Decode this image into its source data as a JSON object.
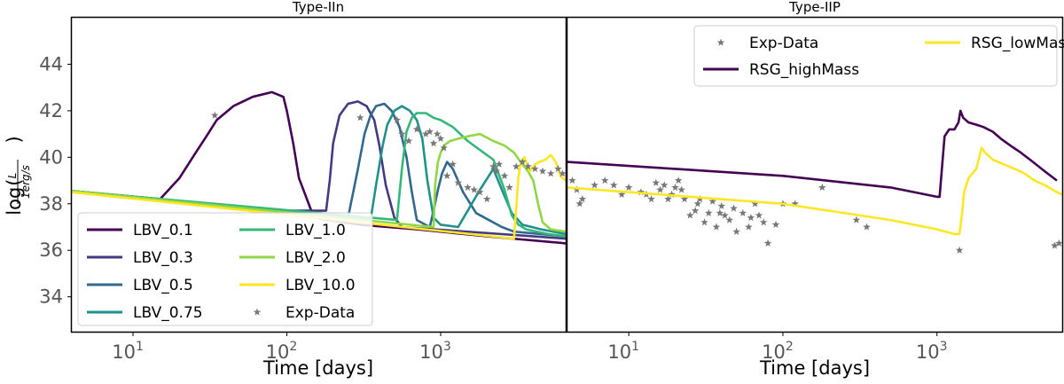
{
  "chart_data": [
    {
      "type": "line",
      "title": "Type-IIn",
      "xlabel": "Time [days]",
      "ylabel": "log(L / 1 erg/s)",
      "xscale": "log",
      "xlim": [
        4,
        6500
      ],
      "ylim": [
        32.5,
        46
      ],
      "xticks": [
        {
          "base": "10",
          "exp": "1"
        },
        {
          "base": "10",
          "exp": "2"
        },
        {
          "base": "10",
          "exp": "3"
        }
      ],
      "yticks": [
        "34",
        "36",
        "38",
        "40",
        "42",
        "44"
      ],
      "legend_position": "lower-left",
      "series": [
        {
          "name": "LBV_0.1",
          "color": "#440154",
          "x": [
            4,
            15,
            20,
            25,
            30,
            35,
            45,
            60,
            80,
            95,
            100,
            110,
            120,
            150,
            300,
            700,
            2000,
            6500
          ],
          "y": [
            38.55,
            38.2,
            39.1,
            40.1,
            40.9,
            41.6,
            42.2,
            42.6,
            42.8,
            42.6,
            42.0,
            40.6,
            39.1,
            37.4,
            37.1,
            36.9,
            36.6,
            36.3
          ]
        },
        {
          "name": "LBV_0.3",
          "color": "#443a83",
          "x": [
            4,
            100,
            180,
            190,
            200,
            220,
            250,
            290,
            330,
            370,
            400,
            440,
            500,
            560,
            6500
          ],
          "y": [
            38.55,
            37.7,
            37.7,
            39.0,
            40.6,
            41.8,
            42.3,
            42.4,
            42.2,
            41.6,
            40.5,
            38.8,
            37.4,
            37.0,
            36.5
          ]
        },
        {
          "name": "LBV_0.5",
          "color": "#31688e",
          "x": [
            4,
            250,
            290,
            320,
            350,
            380,
            430,
            480,
            540,
            600,
            650,
            700,
            850,
            900,
            960,
            1020,
            1100,
            1200,
            1400,
            1700,
            2500,
            3000,
            6500
          ],
          "y": [
            38.55,
            37.4,
            39.5,
            41.0,
            41.8,
            42.2,
            42.3,
            42.0,
            41.3,
            40.0,
            38.5,
            37.3,
            37.0,
            37.7,
            38.6,
            39.3,
            39.8,
            39.5,
            38.5,
            37.6,
            37.0,
            36.8,
            36.6
          ]
        },
        {
          "name": "LBV_0.75",
          "color": "#21918c",
          "x": [
            4,
            350,
            380,
            420,
            450,
            500,
            560,
            630,
            700,
            760,
            820,
            900,
            1000,
            1300,
            1800,
            2200,
            2500,
            2900,
            3400,
            4500,
            6500
          ],
          "y": [
            38.55,
            37.3,
            38.8,
            40.5,
            41.4,
            42.0,
            42.2,
            42.0,
            41.6,
            40.8,
            39.0,
            37.4,
            37.1,
            37.0,
            38.6,
            39.5,
            38.6,
            37.6,
            37.1,
            36.9,
            36.7
          ]
        },
        {
          "name": "LBV_1.0",
          "color": "#35b779",
          "x": [
            4,
            520,
            560,
            600,
            650,
            700,
            800,
            900,
            1000,
            1200,
            1500,
            1900,
            2200,
            2600,
            2900,
            3200,
            3600,
            4200,
            5000,
            6500
          ],
          "y": [
            38.55,
            37.3,
            39.5,
            41.1,
            41.7,
            41.9,
            41.9,
            41.7,
            41.6,
            41.3,
            40.7,
            40.2,
            39.9,
            38.6,
            37.5,
            37.1,
            36.9,
            36.8,
            36.7,
            36.6
          ]
        },
        {
          "name": "LBV_2.0",
          "color": "#8fd744",
          "x": [
            4,
            900,
            920,
            960,
            1000,
            1050,
            1150,
            1300,
            1500,
            1800,
            2200,
            2600,
            3000,
            3400,
            3700,
            4000,
            4300,
            4600,
            5200,
            6500
          ],
          "y": [
            38.55,
            37.0,
            38.8,
            39.8,
            40.2,
            40.5,
            40.7,
            40.8,
            40.9,
            41.0,
            40.7,
            40.5,
            40.2,
            39.7,
            39.4,
            39.0,
            38.0,
            37.2,
            36.9,
            36.8
          ]
        },
        {
          "name": "LBV_10.0",
          "color": "#fde725",
          "x": [
            4,
            3000,
            3100,
            3200,
            3300,
            3500,
            3800,
            4100,
            4400,
            4800,
            5200,
            5600,
            6000,
            6500
          ],
          "y": [
            38.5,
            36.5,
            37.8,
            39.1,
            39.7,
            40.0,
            39.4,
            39.7,
            39.8,
            39.9,
            40.1,
            39.8,
            39.2,
            39.0
          ]
        },
        {
          "name": "Exp-Data",
          "type": "scatter",
          "marker": "star",
          "color": "#777777",
          "x": [
            34,
            300,
            520,
            560,
            620,
            700,
            800,
            850,
            900,
            950,
            1000,
            1050,
            1100,
            1200,
            1300,
            1500,
            1650,
            1800,
            2000,
            2200,
            2300,
            2400,
            2600,
            2800,
            3100,
            3400,
            3700,
            4100,
            4600,
            5200,
            5800,
            6200
          ],
          "y": [
            41.8,
            41.7,
            41.6,
            41.0,
            40.7,
            41.2,
            41.0,
            41.1,
            40.6,
            41.0,
            40.8,
            40.4,
            39.2,
            39.7,
            38.9,
            38.7,
            38.6,
            38.5,
            38.2,
            39.6,
            39.4,
            39.7,
            39.2,
            38.7,
            39.6,
            39.8,
            39.6,
            39.5,
            39.4,
            39.3,
            39.5,
            39.3
          ]
        }
      ]
    },
    {
      "type": "line",
      "title": "Type-IIP",
      "xlabel": "Time [days]",
      "xscale": "log",
      "xlim": [
        4,
        6500
      ],
      "ylim": [
        32.5,
        46
      ],
      "xticks": [
        {
          "base": "10",
          "exp": "1"
        },
        {
          "base": "10",
          "exp": "2"
        },
        {
          "base": "10",
          "exp": "3"
        }
      ],
      "legend_position": "top-right",
      "series": [
        {
          "name": "Exp-Data",
          "type": "scatter",
          "marker": "star",
          "color": "#777777",
          "x": [
            4.3,
            4.6,
            4.8,
            5,
            6,
            7,
            8,
            9,
            10,
            12,
            13,
            14,
            15,
            16,
            17,
            18,
            19,
            20,
            21,
            22,
            23,
            25,
            27,
            28,
            29,
            31,
            33,
            35,
            37,
            39,
            40,
            42,
            45,
            48,
            50,
            55,
            60,
            62,
            66,
            70,
            75,
            80,
            90,
            100,
            120,
            180,
            300,
            350,
            1400,
            5800,
            6200
          ],
          "y": [
            39.0,
            38.6,
            38.0,
            38.2,
            38.8,
            39.0,
            38.8,
            38.4,
            38.7,
            38.5,
            38.4,
            38.2,
            38.9,
            38.6,
            38.8,
            38.2,
            38.4,
            38.7,
            39.0,
            38.6,
            38.2,
            37.5,
            37.7,
            38.0,
            38.2,
            37.2,
            37.6,
            38.1,
            37.0,
            37.6,
            37.9,
            37.5,
            37.3,
            37.8,
            36.8,
            37.6,
            37.0,
            37.4,
            38.0,
            37.5,
            37.2,
            36.3,
            37.1,
            38.0,
            38.0,
            38.7,
            37.3,
            37.0,
            36.0,
            36.2,
            36.3
          ]
        },
        {
          "name": "RSG_highMass",
          "color": "#440154",
          "x": [
            4,
            100,
            500,
            1000,
            1040,
            1080,
            1120,
            1200,
            1300,
            1380,
            1420,
            1480,
            1600,
            1800,
            2000,
            2300,
            2600,
            3000,
            3500,
            4200,
            5000,
            6000
          ],
          "y": [
            39.8,
            39.2,
            38.7,
            38.3,
            38.3,
            39.6,
            40.9,
            41.2,
            41.2,
            41.5,
            42.0,
            41.7,
            41.5,
            41.4,
            41.3,
            41.1,
            40.8,
            40.5,
            40.2,
            39.8,
            39.4,
            39.0
          ]
        },
        {
          "name": "RSG_lowMass",
          "color": "#fde725",
          "x": [
            4,
            100,
            500,
            1000,
            1300,
            1400,
            1450,
            1500,
            1600,
            1800,
            1950,
            2050,
            2300,
            2700,
            3200,
            3700,
            4300,
            5000,
            6000,
            6500
          ],
          "y": [
            38.7,
            38.0,
            37.3,
            36.9,
            36.7,
            36.7,
            37.5,
            38.5,
            39.1,
            39.5,
            40.4,
            40.2,
            39.9,
            39.7,
            39.5,
            39.3,
            39.0,
            38.8,
            38.5,
            38.4
          ]
        }
      ]
    }
  ]
}
